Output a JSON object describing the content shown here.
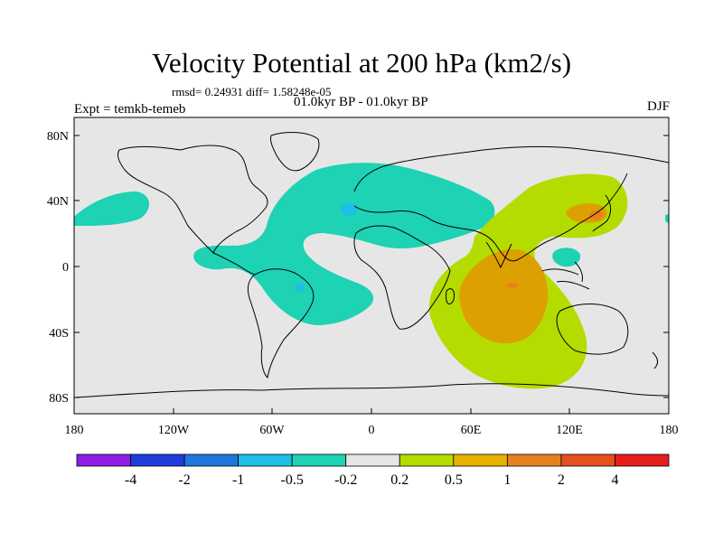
{
  "title": "Velocity Potential at 200 hPa (km2/s)",
  "stats": "rmsd= 0.24931 diff= 1.58248e-05",
  "period": "01.0kyr BP - 01.0kyr BP",
  "experiment": "Expt = temkb-temeb",
  "season": "DJF",
  "lat_ticks": [
    "80N",
    "40N",
    "0",
    "40S",
    "80S"
  ],
  "lon_ticks": [
    "180",
    "120W",
    "60W",
    "0",
    "60E",
    "120E",
    "180"
  ],
  "colorbar": {
    "labels": [
      "-4",
      "-2",
      "-1",
      "-0.5",
      "-0.2",
      "0.2",
      "0.5",
      "1",
      "2",
      "4"
    ],
    "colors": [
      "#8c1ee6",
      "#1e3cdc",
      "#1e78dc",
      "#1ebee6",
      "#1ed2b4",
      "#e6e6e6",
      "#b4dc00",
      "#e6b400",
      "#e6821e",
      "#e6501e",
      "#e61e1e"
    ]
  },
  "colors": {
    "background": "#e6e6e6",
    "neg_weak": "#1ed2b4",
    "neg_mod": "#1ebee6",
    "pos_weak": "#b4dc00",
    "pos_mod": "#dca000",
    "pos_strong": "#e6821e"
  }
}
